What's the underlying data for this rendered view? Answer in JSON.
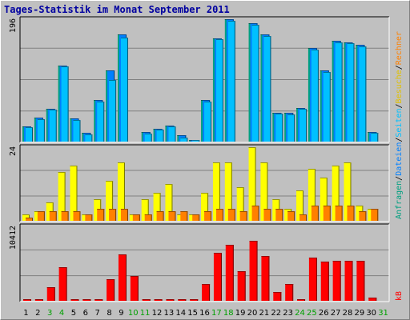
{
  "title": "Tages-Statistik im Monat September 2011",
  "colors": {
    "pages": "#00c0ff",
    "files": "#0080ff",
    "hits": "#00a080",
    "visits": "#ffff00",
    "sites": "#ff8000",
    "kbytes": "#ff0000",
    "weekend_label": "#00a000",
    "weekday_label": "#000000"
  },
  "right_labels": {
    "top_hits": "Anfragen",
    "top_files": "Dateien",
    "top_pages": "Seiten",
    "mid_visits": "Besuche",
    "mid_sites": "Rechner",
    "bottom_kb": "kB",
    "slash": "/"
  },
  "chart_data": [
    {
      "type": "bar",
      "panel": "hits-files-pages",
      "ylabel_max": "196",
      "ylim": [
        0,
        196
      ],
      "grid": true,
      "categories": [
        "1",
        "2",
        "3",
        "4",
        "5",
        "6",
        "7",
        "8",
        "9",
        "10",
        "11",
        "12",
        "13",
        "14",
        "15",
        "16",
        "17",
        "18",
        "19",
        "20",
        "21",
        "22",
        "23",
        "24",
        "25",
        "26",
        "27",
        "28",
        "29",
        "30",
        "31"
      ],
      "series": [
        {
          "name": "Anfragen",
          "values": [
            24,
            39,
            52,
            122,
            37,
            14,
            67,
            114,
            172,
            0,
            15,
            20,
            26,
            10,
            3,
            66,
            165,
            196,
            0,
            190,
            172,
            46,
            46,
            54,
            150,
            114,
            161,
            159,
            155,
            15,
            0
          ]
        },
        {
          "name": "Dateien",
          "values": [
            24,
            39,
            52,
            122,
            37,
            14,
            67,
            114,
            172,
            0,
            15,
            20,
            26,
            10,
            3,
            66,
            165,
            196,
            0,
            190,
            172,
            46,
            46,
            54,
            150,
            114,
            161,
            159,
            155,
            15,
            0
          ]
        },
        {
          "name": "Seiten",
          "values": [
            23,
            36,
            51,
            120,
            34,
            12,
            64,
            98,
            167,
            0,
            13,
            19,
            24,
            6,
            2,
            64,
            164,
            194,
            0,
            187,
            169,
            45,
            44,
            53,
            147,
            112,
            159,
            157,
            152,
            14,
            0
          ]
        }
      ]
    },
    {
      "type": "bar",
      "panel": "visits-sites",
      "ylabel_max": "24",
      "ylim": [
        0,
        24
      ],
      "grid": true,
      "categories": [
        "1",
        "2",
        "3",
        "4",
        "5",
        "6",
        "7",
        "8",
        "9",
        "10",
        "11",
        "12",
        "13",
        "14",
        "15",
        "16",
        "17",
        "18",
        "19",
        "20",
        "21",
        "22",
        "23",
        "24",
        "25",
        "26",
        "27",
        "28",
        "29",
        "30",
        "31"
      ],
      "series": [
        {
          "name": "Besuche",
          "values": [
            2,
            3,
            6,
            16,
            18,
            2,
            7,
            13,
            19,
            2,
            7,
            9,
            12,
            2,
            2,
            9,
            19,
            19,
            11,
            24,
            19,
            7,
            4,
            10,
            17,
            14,
            18,
            19,
            5,
            4,
            0
          ]
        },
        {
          "name": "Rechner",
          "values": [
            1,
            3,
            3,
            3,
            3,
            2,
            4,
            4,
            4,
            2,
            2,
            3,
            3,
            3,
            2,
            3,
            4,
            4,
            3,
            5,
            4,
            4,
            3,
            2,
            5,
            5,
            5,
            5,
            3,
            4,
            0
          ]
        }
      ]
    },
    {
      "type": "bar",
      "panel": "kbytes",
      "ylabel_max": "10412",
      "ylim": [
        0,
        10412
      ],
      "grid": true,
      "categories": [
        "1",
        "2",
        "3",
        "4",
        "5",
        "6",
        "7",
        "8",
        "9",
        "10",
        "11",
        "12",
        "13",
        "14",
        "15",
        "16",
        "17",
        "18",
        "19",
        "20",
        "21",
        "22",
        "23",
        "24",
        "25",
        "26",
        "27",
        "28",
        "29",
        "30",
        "31"
      ],
      "series": [
        {
          "name": "kB",
          "values": [
            120,
            160,
            1850,
            4700,
            120,
            80,
            140,
            3050,
            6450,
            3450,
            120,
            160,
            220,
            110,
            110,
            2400,
            6750,
            7800,
            4100,
            8400,
            6300,
            1200,
            2400,
            110,
            6050,
            5500,
            5550,
            5550,
            5600,
            400,
            0
          ]
        }
      ]
    }
  ]
}
